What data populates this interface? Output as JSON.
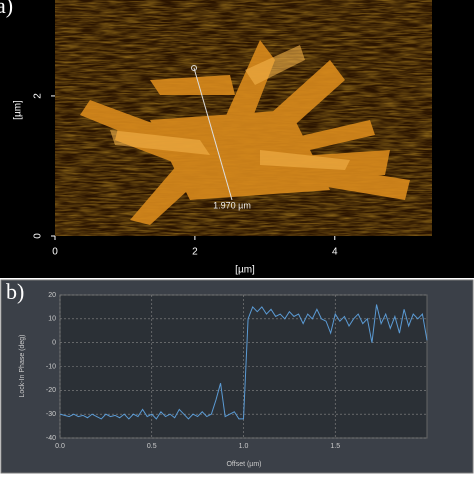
{
  "chart_data": [
    {
      "type": "image",
      "panel_label": "a)",
      "xlabel": "[µm]",
      "ylabel": "[µm]",
      "annotation": "1.970 µm",
      "xlim": [
        0,
        5.39
      ],
      "ylim": [
        0,
        3.37
      ],
      "xticks": [
        0,
        2,
        4
      ],
      "yticks": [
        0,
        2
      ]
    },
    {
      "type": "line",
      "panel_label": "b)",
      "xlabel": "Offset (µm)",
      "ylabel": "Lock-In Phase (deg)",
      "grid": true,
      "xlim": [
        0,
        2.0
      ],
      "ylim": [
        -40,
        20
      ],
      "xticks": [
        {
          "value": 0,
          "label": "0.0"
        },
        0.5,
        {
          "value": 1,
          "label": "1.0"
        },
        1.5
      ],
      "yticks": [
        -40,
        -30,
        -20,
        -10,
        0,
        10,
        20
      ],
      "x": [
        0,
        0.025,
        0.05,
        0.075,
        0.1,
        0.125,
        0.15,
        0.175,
        0.2,
        0.225,
        0.25,
        0.275,
        0.3,
        0.325,
        0.35,
        0.375,
        0.4,
        0.425,
        0.45,
        0.475,
        0.5,
        0.525,
        0.55,
        0.575,
        0.6,
        0.625,
        0.65,
        0.675,
        0.7,
        0.725,
        0.75,
        0.775,
        0.8,
        0.825,
        0.85,
        0.875,
        0.9,
        0.925,
        0.95,
        0.975,
        1.0,
        1.025,
        1.05,
        1.075,
        1.1,
        1.125,
        1.15,
        1.175,
        1.2,
        1.225,
        1.25,
        1.275,
        1.3,
        1.325,
        1.35,
        1.375,
        1.4,
        1.425,
        1.45,
        1.475,
        1.5,
        1.525,
        1.55,
        1.575,
        1.6,
        1.625,
        1.65,
        1.675,
        1.7,
        1.725,
        1.75,
        1.775,
        1.8,
        1.825,
        1.85,
        1.875,
        1.9,
        1.925,
        1.95,
        1.975,
        2.0
      ],
      "series": [
        {
          "color": "#5b9bd5",
          "values": [
            -30,
            -30.5,
            -31,
            -30,
            -31,
            -30.5,
            -31.5,
            -30,
            -31,
            -32,
            -30,
            -31,
            -30.5,
            -31.5,
            -30,
            -32,
            -30,
            -31,
            -28,
            -31,
            -30,
            -32,
            -29,
            -31,
            -30,
            -31.5,
            -28,
            -30,
            -32,
            -30,
            -31,
            -29,
            -31,
            -30,
            -24,
            -17,
            -31,
            -30,
            -29,
            -32,
            -32,
            10,
            15,
            13,
            15,
            12,
            14,
            11,
            12,
            10,
            13,
            11,
            12,
            8,
            12,
            10,
            14,
            10,
            9,
            4,
            12,
            9,
            11,
            7,
            10,
            12,
            8,
            10,
            0,
            16,
            8,
            12,
            6,
            11,
            4,
            14,
            7,
            12,
            10,
            12,
            1
          ]
        }
      ]
    }
  ]
}
